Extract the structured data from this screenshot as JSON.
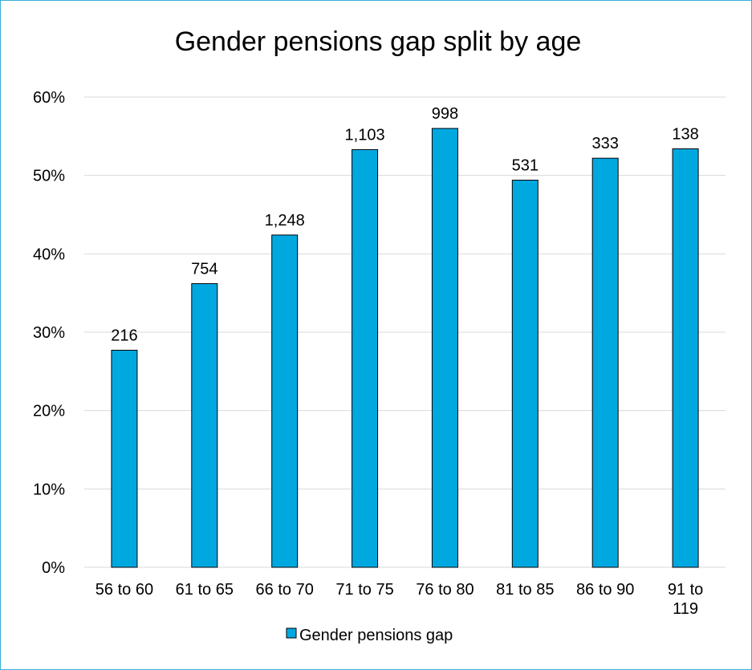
{
  "chart_data": {
    "type": "bar",
    "title": "Gender pensions gap split by age",
    "categories": [
      "56 to 60",
      "61 to 65",
      "66 to 70",
      "71 to 75",
      "76 to 80",
      "81 to 85",
      "86 to 90",
      "91 to 119"
    ],
    "series": [
      {
        "name": "Gender pensions gap",
        "values": [
          27.7,
          36.2,
          42.4,
          53.3,
          56.0,
          49.4,
          52.2,
          53.4
        ],
        "data_labels": [
          "216",
          "754",
          "1,248",
          "1,103",
          "998",
          "531",
          "333",
          "138"
        ],
        "color": "#00a8e0"
      }
    ],
    "ylim": [
      0,
      60
    ],
    "y_ticks": [
      "0%",
      "10%",
      "20%",
      "30%",
      "40%",
      "50%",
      "60%"
    ],
    "y_tick_values": [
      0,
      10,
      20,
      30,
      40,
      50,
      60
    ],
    "grid": true,
    "legend": "bottom",
    "xlabel": "",
    "ylabel": ""
  },
  "colors": {
    "bar_fill": "#00a8e0",
    "bar_stroke": "#000000",
    "gridline": "#d9d9d9",
    "frame_border": "#3aaed8"
  }
}
